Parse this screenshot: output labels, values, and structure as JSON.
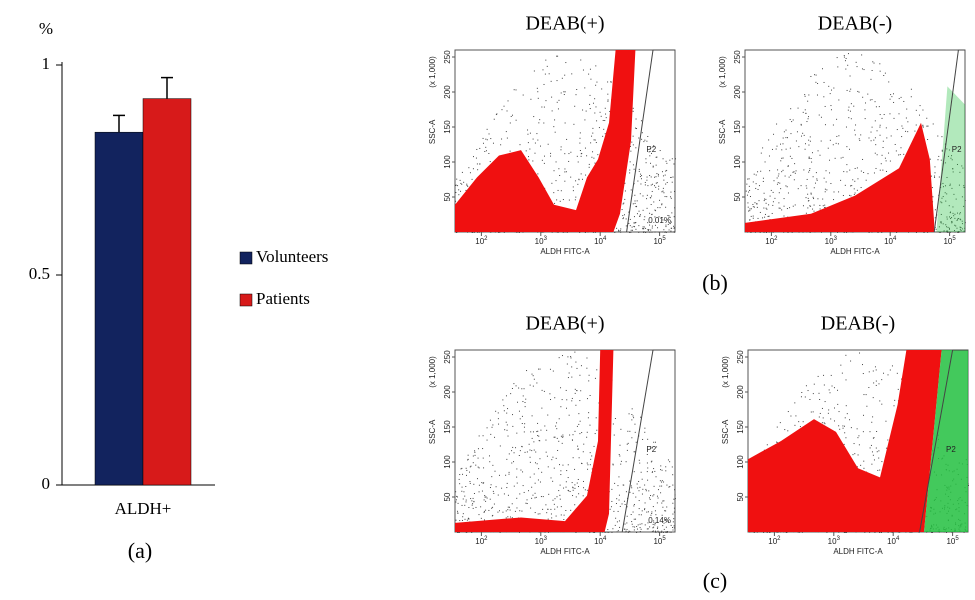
{
  "chart_data": {
    "type": "bar",
    "y_label": "%",
    "panel_label": "(a)",
    "categories": [
      "ALDH+"
    ],
    "series": [
      {
        "name": "Volunteers",
        "color": "#12235e",
        "values": [
          0.84
        ],
        "errors": [
          0.04
        ]
      },
      {
        "name": "Patients",
        "color": "#d71a1a",
        "values": [
          0.92
        ],
        "errors": [
          0.05
        ]
      }
    ],
    "ylim": [
      0,
      1
    ],
    "yticks": [
      0,
      0.5,
      1
    ]
  },
  "flow": {
    "y_label": "SSC-A",
    "y_unit": "(x 1,000)",
    "x_label": "ALDH FITC-A",
    "y_ticks": [
      50,
      100,
      150,
      200,
      250
    ],
    "x_tick_base": "10",
    "x_tick_exponents": [
      2,
      3,
      4,
      5
    ],
    "rows": [
      {
        "label": "(b)",
        "plots": [
          {
            "title": "DEAB(+)",
            "gate": "P2",
            "percent": "0.01%"
          },
          {
            "title": "DEAB(-)",
            "gate": "P2"
          }
        ]
      },
      {
        "label": "(c)",
        "plots": [
          {
            "title": "DEAB(+)",
            "gate": "P2",
            "percent": "0.14%"
          },
          {
            "title": "DEAB(-)",
            "gate": "P2"
          }
        ]
      }
    ]
  }
}
